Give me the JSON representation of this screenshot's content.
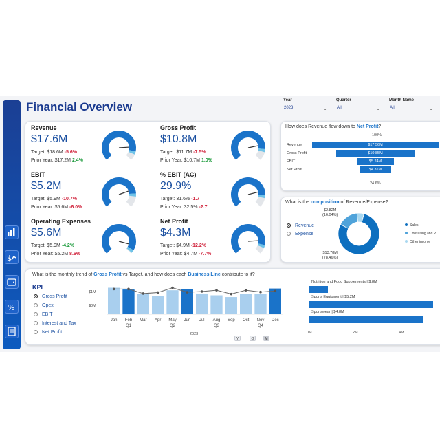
{
  "title": "Financial Overview",
  "slicers": [
    {
      "label": "Year",
      "value": "2023"
    },
    {
      "label": "Quarter",
      "value": "All"
    },
    {
      "label": "Month Name",
      "value": "All"
    }
  ],
  "kpis": [
    {
      "name": "Revenue",
      "value": "$17.6M",
      "target_text": "Target: $18.6M",
      "target_delta": "-5.6%",
      "target_status": "neg",
      "prior_text": "Prior Year: $17.2M",
      "prior_delta": "2.4%",
      "prior_status": "pos",
      "gauge_fill": 0.88
    },
    {
      "name": "Gross Profit",
      "value": "$10.8M",
      "target_text": "Target: $11.7M",
      "target_delta": "-7.5%",
      "target_status": "neg",
      "prior_text": "Prior Year: $10.7M",
      "prior_delta": "1.0%",
      "prior_status": "pos",
      "gauge_fill": 0.85
    },
    {
      "name": "EBIT",
      "value": "$5.2M",
      "target_text": "Target: $5.9M",
      "target_delta": "-10.7%",
      "target_status": "neg",
      "prior_text": "Prior Year: $5.6M",
      "prior_delta": "-6.0%",
      "prior_status": "neg",
      "gauge_fill": 0.82
    },
    {
      "name": "% EBIT (AC)",
      "value": "29.9%",
      "target_text": "Target: 31.6%",
      "target_delta": "-1.7",
      "target_status": "neg",
      "prior_text": "Prior Year: 32.5%",
      "prior_delta": "-2.7",
      "prior_status": "neg",
      "gauge_fill": 0.84
    },
    {
      "name": "Operating Expenses",
      "value": "$5.6M",
      "target_text": "Target: $5.9M",
      "target_delta": "-4.2%",
      "target_status": "pos",
      "prior_text": "Prior Year: $5.2M",
      "prior_delta": "8.6%",
      "prior_status": "neg",
      "gauge_fill": 0.95
    },
    {
      "name": "Net Profit",
      "value": "$4.3M",
      "target_text": "Target: $4.9M",
      "target_delta": "-12.2%",
      "target_status": "neg",
      "prior_text": "Prior Year: $4.7M",
      "prior_delta": "-7.7%",
      "prior_status": "neg",
      "gauge_fill": 0.88
    }
  ],
  "funnel": {
    "question_prefix": "How does Revenue flow down to ",
    "question_highlight": "Net Profit",
    "question_suffix": "?",
    "top_pct": "100%",
    "bottom_pct": "24.6%",
    "chart_data": {
      "type": "bar",
      "categories": [
        "Revenue",
        "Gross Profit",
        "EBIT",
        "Net Profit"
      ],
      "values": [
        17.56,
        10.85,
        5.24,
        4.31
      ],
      "labels": [
        "$17.56M",
        "$10.85M",
        "$5.24M",
        "$4.31M"
      ]
    }
  },
  "composition": {
    "question_prefix": "What is the ",
    "question_highlight": "composition",
    "question_suffix": " of Revenue/Expense?",
    "options": [
      {
        "label": "Revenue",
        "selected": true
      },
      {
        "label": "Expense",
        "selected": false
      }
    ],
    "chart_data": {
      "type": "pie",
      "categories": [
        "Sales",
        "Consulting and P...",
        "Other income"
      ],
      "values": [
        13.78,
        2.82,
        0.96
      ],
      "colors": [
        "#0d6fbf",
        "#4fa3da",
        "#a9d8f0"
      ]
    },
    "label_top": "$2.82M",
    "label_top_pct": "(16.04%)",
    "label_bottom": "$13.78M",
    "label_bottom_pct": "(78.46%)"
  },
  "trend": {
    "question_prefix": "What is the monthly trend of ",
    "question_h1": "Gross Profit",
    "question_mid": " vs Target, and how does each ",
    "question_h2": "Business Line",
    "question_suffix": " contribute to it?",
    "kpi_title": "KPI",
    "kpi_options": [
      {
        "label": "Gross Profit",
        "selected": true
      },
      {
        "label": "Opex",
        "selected": false
      },
      {
        "label": "EBIT",
        "selected": false
      },
      {
        "label": "Interest and Tax",
        "selected": false
      },
      {
        "label": "Net Profit",
        "selected": false
      }
    ],
    "y_tick_top": "$1M",
    "y_tick_mid": "$0M",
    "year_label": "2023",
    "quarters": [
      "Q1",
      "Q2",
      "Q3",
      "Q4"
    ],
    "drill_buttons": [
      "Y",
      "Q",
      "M"
    ],
    "chart_data": {
      "type": "bar",
      "categories": [
        "Jan",
        "Feb",
        "Mar",
        "Apr",
        "May",
        "Jun",
        "Jul",
        "Aug",
        "Sep",
        "Oct",
        "Nov",
        "Dec"
      ],
      "series": [
        {
          "values": [
            1.05,
            0.98,
            0.8,
            0.72,
            0.95,
            1.0,
            0.82,
            0.75,
            0.68,
            0.8,
            0.8,
            1.02
          ]
        },
        {
          "values": [
            1.0,
            1.0,
            0.82,
            0.86,
            1.05,
            0.87,
            0.9,
            0.95,
            0.8,
            0.95,
            0.88,
            0.92
          ]
        }
      ],
      "highlighted": [
        false,
        true,
        false,
        false,
        false,
        true,
        false,
        false,
        false,
        false,
        false,
        true
      ],
      "ylim": [
        0,
        1.2
      ]
    }
  },
  "business_lines": {
    "ticks": [
      "0M",
      "2M",
      "4M"
    ],
    "chart_data": {
      "type": "bar",
      "categories": [
        "Nutrition and Food Supplements",
        "Sports Equipment",
        "Sportswear"
      ],
      "labels": [
        "Nutrition and Food Supplements | $.8M",
        "Sports Equipment | $5.2M",
        "Sportswear | $4.8M"
      ],
      "values": [
        0.8,
        5.2,
        4.8
      ],
      "xlim": [
        0,
        5.4
      ]
    }
  },
  "colors": {
    "accent": "#1a73c9",
    "dark": "#1a3a8f",
    "gauge_track": "#e3e6ea",
    "gauge_end": "#6fc3e8"
  }
}
